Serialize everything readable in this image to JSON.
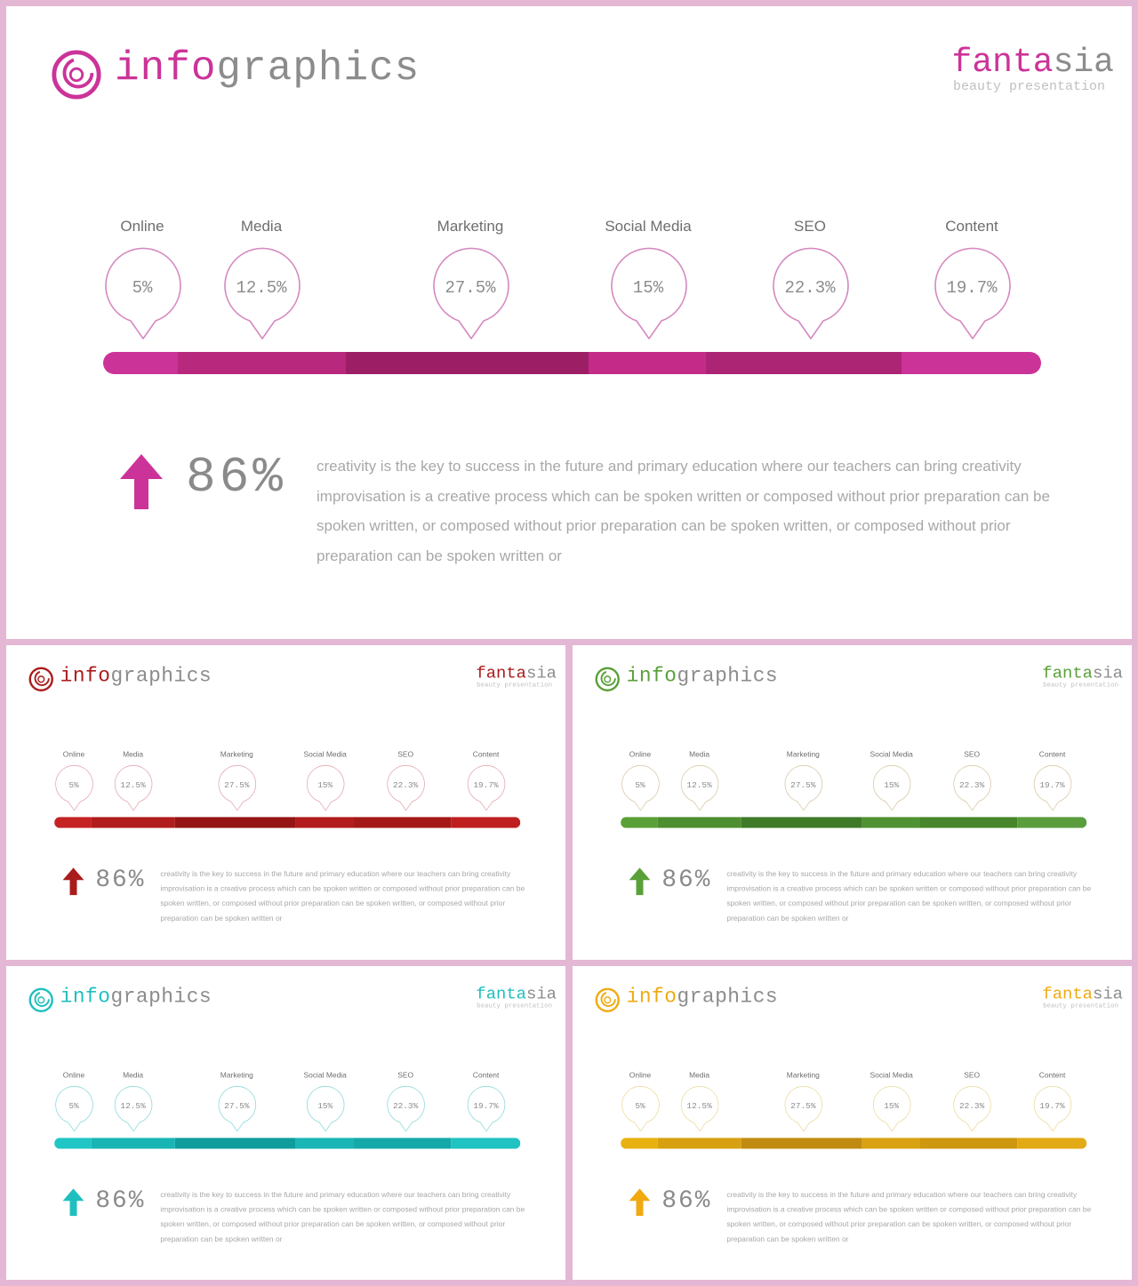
{
  "header": {
    "title_accent": "info",
    "title_rest": "graphics",
    "brand_accent": "fanta",
    "brand_rest": "sia",
    "brand_subtitle": "beauty presentation"
  },
  "markers": [
    {
      "label": "Online",
      "value": "5%"
    },
    {
      "label": "Media",
      "value": "12.5%"
    },
    {
      "label": "Marketing",
      "value": "27.5%"
    },
    {
      "label": "Social Media",
      "value": "15%"
    },
    {
      "label": "SEO",
      "value": "22.3%"
    },
    {
      "label": "Content",
      "value": "19.7%"
    }
  ],
  "stat": {
    "value": "86%",
    "arrow_icon": "up-arrow-icon"
  },
  "description": "creativity is the key to success in the future and primary education where our teachers can bring creativity improvisation is a creative process which can be spoken written or composed without prior preparation can be spoken written, or composed without prior preparation can be spoken written, or composed without prior preparation can be spoken written or",
  "themes": [
    {
      "name": "pink",
      "accent": "#cc3399",
      "pin_color": "#d58ac0",
      "segments": [
        "#cc3399",
        "#b8287d",
        "#9c1f65",
        "#c42b88",
        "#ac2575",
        "#cc3399"
      ]
    },
    {
      "name": "red",
      "accent": "#aa1c1c",
      "pin_color": "#e3a9b3",
      "segments": [
        "#c52222",
        "#b11c1c",
        "#951414",
        "#b21c1c",
        "#a51818",
        "#bf1f1f"
      ]
    },
    {
      "name": "green",
      "accent": "#5aa038",
      "pin_color": "#d9c9a8",
      "segments": [
        "#5aa038",
        "#4d8e30",
        "#3f7a28",
        "#4f9232",
        "#468529",
        "#5a9d3d"
      ]
    },
    {
      "name": "teal",
      "accent": "#1fbfbf",
      "pin_color": "#8fdada",
      "segments": [
        "#20c6c6",
        "#19b5b5",
        "#0f9c9c",
        "#1ab6b6",
        "#15a8a8",
        "#20c2c2"
      ]
    },
    {
      "name": "yellow",
      "accent": "#f0aa10",
      "pin_color": "#ecdca0",
      "segments": [
        "#e8b110",
        "#d7a010",
        "#c08b10",
        "#d9a212",
        "#cd970f",
        "#e2aa14"
      ]
    }
  ]
}
